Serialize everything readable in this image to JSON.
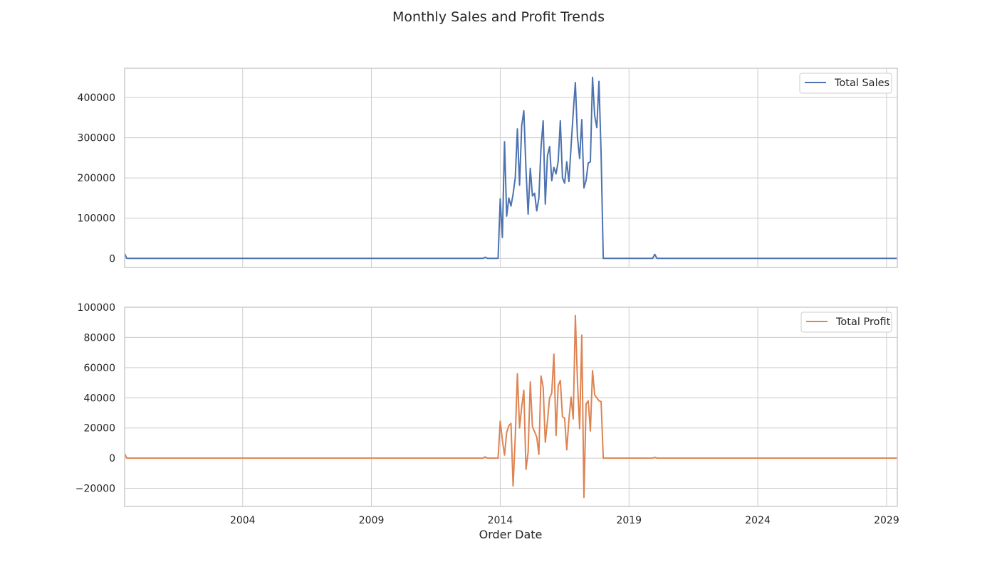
{
  "chart_data": {
    "type": "line",
    "title": "Monthly Sales and Profit Trends",
    "xlabel": "Order Date",
    "x_tick_labels": [
      "2004",
      "2009",
      "2014",
      "2019",
      "2024",
      "2029"
    ],
    "xlim": [
      "1999-06",
      "2029-06"
    ],
    "colors": {
      "sales": "#4c72b0",
      "profit": "#dd8452",
      "grid": "#cccccc"
    },
    "legend_position": "top-right",
    "grid": true,
    "panels": [
      {
        "series_key": "sales",
        "ylim": [
          -22500,
          472500
        ],
        "yticks": [
          0,
          100000,
          200000,
          300000,
          400000
        ],
        "series": [
          {
            "name": "Total Sales",
            "x": [
              "1999-06",
              "1999-07",
              "2013-05",
              "2013-06",
              "2013-07",
              "2013-12",
              "2014-01",
              "2014-02",
              "2014-03",
              "2014-04",
              "2014-05",
              "2014-06",
              "2014-07",
              "2014-08",
              "2014-09",
              "2014-10",
              "2014-11",
              "2014-12",
              "2015-01",
              "2015-02",
              "2015-03",
              "2015-04",
              "2015-05",
              "2015-06",
              "2015-07",
              "2015-08",
              "2015-09",
              "2015-10",
              "2015-11",
              "2015-12",
              "2016-01",
              "2016-02",
              "2016-03",
              "2016-04",
              "2016-05",
              "2016-06",
              "2016-07",
              "2016-08",
              "2016-09",
              "2016-10",
              "2016-11",
              "2016-12",
              "2017-01",
              "2017-02",
              "2017-03",
              "2017-04",
              "2017-05",
              "2017-06",
              "2017-07",
              "2017-08",
              "2017-09",
              "2017-10",
              "2017-11",
              "2017-12",
              "2018-01",
              "2018-02",
              "2019-12",
              "2020-01",
              "2020-02",
              "2029-06"
            ],
            "y": [
              12000,
              0,
              0,
              3000,
              0,
              0,
              148000,
              52000,
              290000,
              105000,
              150000,
              130000,
              160000,
              200000,
              322000,
              182000,
              330000,
              367000,
              220000,
              110000,
              224000,
              155000,
              162000,
              118000,
              150000,
              275000,
              342000,
              135000,
              255000,
              278000,
              193000,
              226000,
              210000,
              241000,
              342000,
              200000,
              187000,
              240000,
              191000,
              278000,
              362000,
              437000,
              300000,
              248000,
              345000,
              175000,
              194000,
              237000,
              240000,
              450000,
              355000,
              325000,
              440000,
              260000,
              0,
              0,
              0,
              10000,
              0,
              0
            ]
          }
        ]
      },
      {
        "series_key": "profit",
        "ylim": [
          -32000,
          100000
        ],
        "yticks": [
          -20000,
          0,
          20000,
          40000,
          60000,
          80000,
          100000
        ],
        "series": [
          {
            "name": "Total Profit",
            "x": [
              "1999-06",
              "1999-07",
              "2013-05",
              "2013-06",
              "2013-07",
              "2013-12",
              "2014-01",
              "2014-02",
              "2014-03",
              "2014-04",
              "2014-05",
              "2014-06",
              "2014-07",
              "2014-08",
              "2014-09",
              "2014-10",
              "2014-11",
              "2014-12",
              "2015-01",
              "2015-02",
              "2015-03",
              "2015-04",
              "2015-05",
              "2015-06",
              "2015-07",
              "2015-08",
              "2015-09",
              "2015-10",
              "2015-11",
              "2015-12",
              "2016-01",
              "2016-02",
              "2016-03",
              "2016-04",
              "2016-05",
              "2016-06",
              "2016-07",
              "2016-08",
              "2016-09",
              "2016-10",
              "2016-11",
              "2016-12",
              "2017-01",
              "2017-02",
              "2017-03",
              "2017-04",
              "2017-05",
              "2017-06",
              "2017-07",
              "2017-08",
              "2017-09",
              "2017-10",
              "2017-11",
              "2017-12",
              "2018-01",
              "2018-02",
              "2019-12",
              "2020-01",
              "2020-02",
              "2029-06"
            ],
            "y": [
              3000,
              0,
              0,
              800,
              0,
              0,
              24500,
              12000,
              2000,
              17000,
              21500,
              23000,
              -18500,
              14000,
              56000,
              20000,
              34000,
              45000,
              -7500,
              4000,
              50500,
              21000,
              17500,
              14000,
              2500,
              54500,
              47000,
              10500,
              24500,
              40000,
              43000,
              69000,
              15000,
              48000,
              51500,
              27500,
              26500,
              5500,
              25500,
              40500,
              26000,
              94500,
              50000,
              19500,
              81500,
              -26000,
              36000,
              38000,
              18000,
              58000,
              42000,
              40000,
              38000,
              37500,
              0,
              0,
              0,
              500,
              0,
              0
            ]
          }
        ]
      }
    ]
  }
}
